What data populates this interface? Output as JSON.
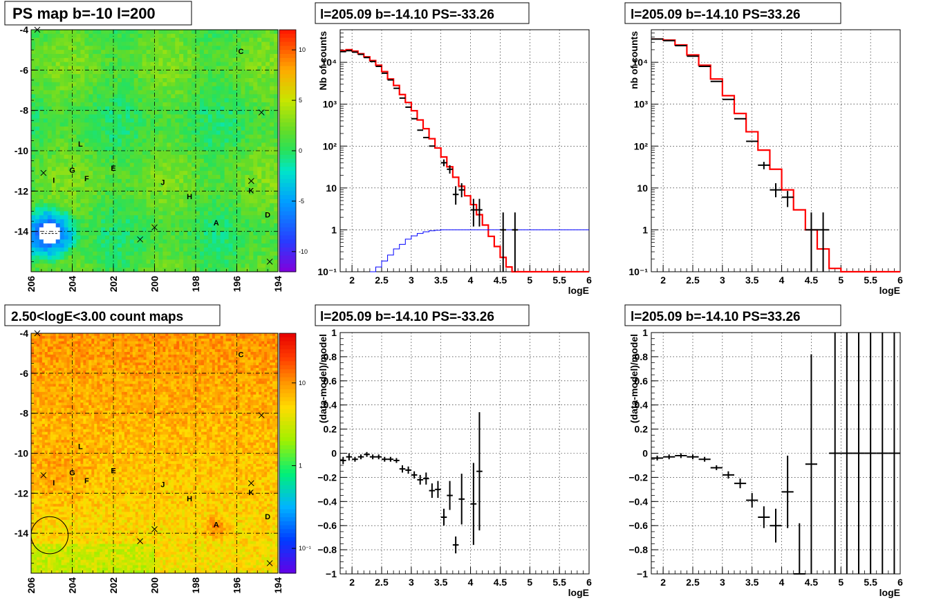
{
  "colors": {
    "data": "#000000",
    "model": "#ff0000",
    "threshold": "#0000ff",
    "grid": "#000000"
  },
  "panels": {
    "ps_map": {
      "title": "PS map b=-10 l=200",
      "x_ticks": [
        "206",
        "204",
        "202",
        "200",
        "198",
        "196",
        "194"
      ],
      "y_ticks": [
        "-4",
        "-6",
        "-8",
        "-10",
        "-12",
        "-14"
      ],
      "colorbar_ticks": [
        "10",
        "5",
        "0",
        "-5",
        "-10"
      ],
      "labels": [
        "C",
        "L",
        "G",
        "I",
        "F",
        "E",
        "J",
        "H",
        "K",
        "D",
        "A"
      ]
    },
    "count_map": {
      "title": "2.50<logE<3.00 count maps",
      "x_ticks": [
        "206",
        "204",
        "202",
        "200",
        "198",
        "196",
        "194"
      ],
      "y_ticks": [
        "-4",
        "-6",
        "-8",
        "-10",
        "-12",
        "-14"
      ],
      "colorbar_ticks": [
        "10",
        "1",
        "10⁻¹"
      ],
      "labels": [
        "C",
        "L",
        "G",
        "I",
        "F",
        "E",
        "J",
        "H",
        "K",
        "D",
        "A"
      ]
    },
    "spec1": {
      "title": "l=205.09 b=-14.10 PS=-33.26",
      "ylabel": "Nb of counts",
      "xlabel": "logE",
      "x_ticks": [
        "2",
        "2.5",
        "3",
        "3.5",
        "4",
        "4.5",
        "5",
        "5.5",
        "6"
      ],
      "y_ticks": [
        "10⁻¹",
        "1",
        "10",
        "10²",
        "10³",
        "10⁴"
      ]
    },
    "spec2": {
      "title": "l=205.09 b=-14.10 PS=33.26",
      "ylabel": "nb of counts",
      "xlabel": "logE",
      "x_ticks": [
        "2",
        "2.5",
        "3",
        "3.5",
        "4",
        "4.5",
        "5",
        "5.5",
        "6"
      ],
      "y_ticks": [
        "10⁻¹",
        "1",
        "10",
        "10²",
        "10³",
        "10⁴"
      ]
    },
    "res1": {
      "title": "l=205.09 b=-14.10 PS=-33.26",
      "ylabel": "(data-model)/model",
      "xlabel": "logE",
      "x_ticks": [
        "2",
        "2.5",
        "3",
        "3.5",
        "4",
        "4.5",
        "5",
        "5.5",
        "6"
      ],
      "y_ticks": [
        "−1",
        "−0.8",
        "−0.6",
        "−0.4",
        "−0.2",
        "0",
        "0.2",
        "0.4",
        "0.6",
        "0.8",
        "1"
      ]
    },
    "res2": {
      "title": "l=205.09 b=-14.10 PS=33.26",
      "ylabel": "(data-model)/model",
      "xlabel": "logE",
      "x_ticks": [
        "2",
        "2.5",
        "3",
        "3.5",
        "4",
        "4.5",
        "5",
        "5.5",
        "6"
      ],
      "y_ticks": [
        "−1",
        "−0.8",
        "−0.6",
        "−0.4",
        "−0.2",
        "0",
        "0.2",
        "0.4",
        "0.6",
        "0.8",
        "1"
      ]
    }
  },
  "chart_data": [
    {
      "type": "heatmap",
      "title": "PS map b=-10 l=200",
      "xlim": [
        206,
        194
      ],
      "ylim": [
        -16,
        -4
      ],
      "zlim": [
        -12,
        12
      ],
      "sources": [
        {
          "name": "C",
          "l": 195.8,
          "b": -5.2
        },
        {
          "name": "L",
          "l": 203.6,
          "b": -9.8
        },
        {
          "name": "G",
          "l": 204.0,
          "b": -11.1
        },
        {
          "name": "I",
          "l": 204.9,
          "b": -11.6
        },
        {
          "name": "F",
          "l": 203.3,
          "b": -11.5
        },
        {
          "name": "E",
          "l": 202.0,
          "b": -11.0
        },
        {
          "name": "J",
          "l": 199.6,
          "b": -11.7
        },
        {
          "name": "H",
          "l": 198.3,
          "b": -12.4
        },
        {
          "name": "K",
          "l": 195.3,
          "b": -12.1
        },
        {
          "name": "D",
          "l": 194.5,
          "b": -13.3
        },
        {
          "name": "A",
          "l": 197.0,
          "b": -13.7
        }
      ],
      "markers": [
        {
          "l": 205.7,
          "b": -4.0
        },
        {
          "l": 205.4,
          "b": -11.1
        },
        {
          "l": 195.3,
          "b": -11.5
        },
        {
          "l": 194.8,
          "b": -8.1
        },
        {
          "l": 200.0,
          "b": -13.8
        },
        {
          "l": 200.7,
          "b": -14.4
        },
        {
          "l": 194.4,
          "b": -15.5
        }
      ],
      "hotspot": {
        "l": 205.1,
        "b": -14.1,
        "description": "saturated white spot"
      }
    },
    {
      "type": "heatmap",
      "title": "2.50<logE<3.00 count maps",
      "xlim": [
        206,
        194
      ],
      "ylim": [
        -16,
        -4
      ],
      "zscale": "log",
      "sources": [
        {
          "name": "C",
          "l": 195.8,
          "b": -5.2
        },
        {
          "name": "L",
          "l": 203.6,
          "b": -9.8
        },
        {
          "name": "G",
          "l": 204.0,
          "b": -11.1
        },
        {
          "name": "I",
          "l": 204.9,
          "b": -11.6
        },
        {
          "name": "F",
          "l": 203.3,
          "b": -11.5
        },
        {
          "name": "E",
          "l": 202.0,
          "b": -11.0
        },
        {
          "name": "J",
          "l": 199.6,
          "b": -11.7
        },
        {
          "name": "H",
          "l": 198.3,
          "b": -12.4
        },
        {
          "name": "K",
          "l": 195.3,
          "b": -12.1
        },
        {
          "name": "D",
          "l": 194.5,
          "b": -13.3
        },
        {
          "name": "A",
          "l": 197.0,
          "b": -13.7
        }
      ],
      "circle": {
        "l": 205.1,
        "b": -14.1,
        "r_deg": 0.45
      }
    },
    {
      "type": "line",
      "title": "l=205.09 b=-14.10 PS=-33.26",
      "xlabel": "logE",
      "ylabel": "Nb of counts",
      "xlim": [
        1.8,
        6
      ],
      "ylim": [
        0.1,
        60000
      ],
      "yscale": "log",
      "grid": true,
      "bin_width": 0.1,
      "series": [
        {
          "role": "model",
          "color": "#ff0000",
          "x": [
            1.8,
            1.9,
            2.0,
            2.1,
            2.2,
            2.3,
            2.4,
            2.5,
            2.6,
            2.7,
            2.8,
            2.9,
            3.0,
            3.1,
            3.2,
            3.3,
            3.4,
            3.5,
            3.6,
            3.7,
            3.8,
            3.9,
            4.0,
            4.1,
            4.2,
            4.3,
            4.4,
            4.5,
            4.6,
            4.7,
            4.8,
            4.9,
            5.0,
            5.1,
            5.2,
            5.3,
            5.4,
            5.5,
            5.6,
            5.7,
            5.8,
            5.9
          ],
          "y": [
            19000,
            20000,
            18500,
            16000,
            13500,
            11000,
            8500,
            6000,
            4000,
            2800,
            1700,
            1100,
            700,
            420,
            260,
            150,
            90,
            55,
            32,
            18,
            11,
            6.5,
            4,
            2.3,
            1.3,
            0.7,
            0.4,
            0.22,
            0.13,
            0.1,
            0.1,
            0.1,
            0.1,
            0.1,
            0.1,
            0.1,
            0.1,
            0.1,
            0.1,
            0.1,
            0.1,
            0.1
          ]
        },
        {
          "role": "threshold",
          "color": "#0000ff",
          "x": [
            2.3,
            2.4,
            2.5,
            2.6,
            2.7,
            2.8,
            2.9,
            3.0,
            3.1,
            3.2,
            3.3,
            3.4,
            3.5,
            6.0
          ],
          "y": [
            0.1,
            0.13,
            0.18,
            0.25,
            0.35,
            0.45,
            0.6,
            0.72,
            0.82,
            0.9,
            0.95,
            0.98,
            1,
            1
          ]
        },
        {
          "role": "data",
          "color": "#000000",
          "points": [
            {
              "x": 1.85,
              "y": 18000
            },
            {
              "x": 1.95,
              "y": 19000
            },
            {
              "x": 2.05,
              "y": 17500
            },
            {
              "x": 2.15,
              "y": 15500
            },
            {
              "x": 2.25,
              "y": 13000
            },
            {
              "x": 2.35,
              "y": 10500
            },
            {
              "x": 2.45,
              "y": 8000
            },
            {
              "x": 2.55,
              "y": 5500
            },
            {
              "x": 2.65,
              "y": 3800
            },
            {
              "x": 2.75,
              "y": 2400
            },
            {
              "x": 2.85,
              "y": 1400
            },
            {
              "x": 2.95,
              "y": 850
            },
            {
              "x": 3.05,
              "y": 450
            },
            {
              "x": 3.15,
              "y": 240
            },
            {
              "x": 3.25,
              "y": 160
            },
            {
              "x": 3.35,
              "y": 100
            },
            {
              "x": 3.55,
              "y": 40,
              "ylo": 33,
              "yhi": 48
            },
            {
              "x": 3.65,
              "y": 28,
              "ylo": 22,
              "yhi": 35
            },
            {
              "x": 3.75,
              "y": 7,
              "ylo": 4,
              "yhi": 11
            },
            {
              "x": 3.85,
              "y": 9,
              "ylo": 6,
              "yhi": 13
            },
            {
              "x": 4.05,
              "y": 3,
              "ylo": 1.2,
              "yhi": 5.5
            },
            {
              "x": 4.15,
              "y": 3,
              "ylo": 1.2,
              "yhi": 5.5
            },
            {
              "x": 4.55,
              "y": 1,
              "ylo": 0.1,
              "yhi": 2.6
            },
            {
              "x": 4.75,
              "y": 1,
              "ylo": 0.1,
              "yhi": 2.6
            }
          ]
        }
      ]
    },
    {
      "type": "line",
      "title": "l=205.09 b=-14.10 PS=33.26",
      "xlabel": "logE",
      "ylabel": "nb of counts",
      "xlim": [
        1.8,
        6
      ],
      "ylim": [
        0.1,
        60000
      ],
      "yscale": "log",
      "grid": true,
      "bin_width": 0.2,
      "series": [
        {
          "role": "model",
          "color": "#ff0000",
          "x": [
            1.8,
            2.0,
            2.2,
            2.4,
            2.6,
            2.8,
            3.0,
            3.2,
            3.4,
            3.6,
            3.8,
            4.0,
            4.2,
            4.4,
            4.6,
            4.8,
            5.0,
            5.2,
            5.4,
            5.6,
            5.8
          ],
          "y": [
            36000,
            34000,
            26000,
            15000,
            8500,
            4000,
            1600,
            600,
            220,
            80,
            28,
            9,
            3,
            1,
            0.35,
            0.12,
            0.1,
            0.1,
            0.1,
            0.1,
            0.1
          ]
        },
        {
          "role": "data",
          "color": "#000000",
          "points": [
            {
              "x": 1.9,
              "y": 36000
            },
            {
              "x": 2.1,
              "y": 33000
            },
            {
              "x": 2.3,
              "y": 25000
            },
            {
              "x": 2.5,
              "y": 14000
            },
            {
              "x": 2.7,
              "y": 8000
            },
            {
              "x": 2.9,
              "y": 3500
            },
            {
              "x": 3.1,
              "y": 1300
            },
            {
              "x": 3.3,
              "y": 450
            },
            {
              "x": 3.5,
              "y": 130
            },
            {
              "x": 3.7,
              "y": 35,
              "ylo": 28,
              "yhi": 42
            },
            {
              "x": 3.9,
              "y": 9,
              "ylo": 6,
              "yhi": 13
            },
            {
              "x": 4.1,
              "y": 6,
              "ylo": 3.5,
              "yhi": 8.5
            },
            {
              "x": 4.5,
              "y": 1,
              "ylo": 0.1,
              "yhi": 2.6
            },
            {
              "x": 4.7,
              "y": 1,
              "ylo": 0.1,
              "yhi": 2.6
            }
          ]
        }
      ]
    },
    {
      "type": "scatter",
      "title": "l=205.09 b=-14.10 PS=-33.26",
      "xlabel": "logE",
      "ylabel": "(data-model)/model",
      "xlim": [
        1.8,
        6
      ],
      "ylim": [
        -1,
        1
      ],
      "grid": true,
      "bin_width": 0.1,
      "points": [
        {
          "x": 1.85,
          "y": -0.06,
          "err": 0.03
        },
        {
          "x": 1.95,
          "y": -0.03,
          "err": 0.03
        },
        {
          "x": 2.05,
          "y": -0.05,
          "err": 0.02
        },
        {
          "x": 2.15,
          "y": -0.03,
          "err": 0.02
        },
        {
          "x": 2.25,
          "y": -0.01,
          "err": 0.02
        },
        {
          "x": 2.35,
          "y": -0.03,
          "err": 0.02
        },
        {
          "x": 2.45,
          "y": -0.03,
          "err": 0.02
        },
        {
          "x": 2.55,
          "y": -0.05,
          "err": 0.02
        },
        {
          "x": 2.65,
          "y": -0.05,
          "err": 0.02
        },
        {
          "x": 2.75,
          "y": -0.06,
          "err": 0.02
        },
        {
          "x": 2.85,
          "y": -0.13,
          "err": 0.03
        },
        {
          "x": 2.95,
          "y": -0.14,
          "err": 0.03
        },
        {
          "x": 3.05,
          "y": -0.18,
          "err": 0.03
        },
        {
          "x": 3.15,
          "y": -0.22,
          "err": 0.04
        },
        {
          "x": 3.25,
          "y": -0.21,
          "err": 0.05
        },
        {
          "x": 3.35,
          "y": -0.31,
          "err": 0.06
        },
        {
          "x": 3.45,
          "y": -0.3,
          "err": 0.07
        },
        {
          "x": 3.55,
          "y": -0.53,
          "err": 0.07
        },
        {
          "x": 3.65,
          "y": -0.35,
          "err": 0.12
        },
        {
          "x": 3.75,
          "y": -0.76,
          "err": 0.07
        },
        {
          "x": 3.85,
          "y": -0.38,
          "err": 0.21
        },
        {
          "x": 4.05,
          "y": -0.42,
          "err": 0.34
        },
        {
          "x": 4.15,
          "y": -0.15,
          "err": 0.49
        }
      ]
    },
    {
      "type": "scatter",
      "title": "l=205.09 b=-14.10 PS=33.26",
      "xlabel": "logE",
      "ylabel": "(data-model)/model",
      "xlim": [
        1.8,
        6
      ],
      "ylim": [
        -1,
        1
      ],
      "grid": true,
      "bin_width": 0.2,
      "points": [
        {
          "x": 1.9,
          "y": -0.04,
          "err": 0.02
        },
        {
          "x": 2.1,
          "y": -0.03,
          "err": 0.02
        },
        {
          "x": 2.3,
          "y": -0.02,
          "err": 0.02
        },
        {
          "x": 2.5,
          "y": -0.03,
          "err": 0.02
        },
        {
          "x": 2.7,
          "y": -0.05,
          "err": 0.02
        },
        {
          "x": 2.9,
          "y": -0.12,
          "err": 0.02
        },
        {
          "x": 3.1,
          "y": -0.18,
          "err": 0.03
        },
        {
          "x": 3.3,
          "y": -0.25,
          "err": 0.04
        },
        {
          "x": 3.5,
          "y": -0.39,
          "err": 0.06
        },
        {
          "x": 3.7,
          "y": -0.53,
          "err": 0.09
        },
        {
          "x": 3.9,
          "y": -0.6,
          "err": 0.14
        },
        {
          "x": 4.1,
          "y": -0.32,
          "err": 0.3
        },
        {
          "x": 4.3,
          "y": -1.0,
          "err": 0.42
        },
        {
          "x": 4.5,
          "y": -0.09,
          "err": 0.91
        },
        {
          "x": 4.9,
          "y": 0,
          "err": 1.5
        },
        {
          "x": 5.1,
          "y": 0,
          "err": 1.5
        },
        {
          "x": 5.3,
          "y": 0,
          "err": 1.5
        },
        {
          "x": 5.5,
          "y": 0,
          "err": 1.5
        },
        {
          "x": 5.7,
          "y": 0,
          "err": 1.5
        },
        {
          "x": 5.9,
          "y": 0,
          "err": 1.5
        }
      ]
    }
  ]
}
